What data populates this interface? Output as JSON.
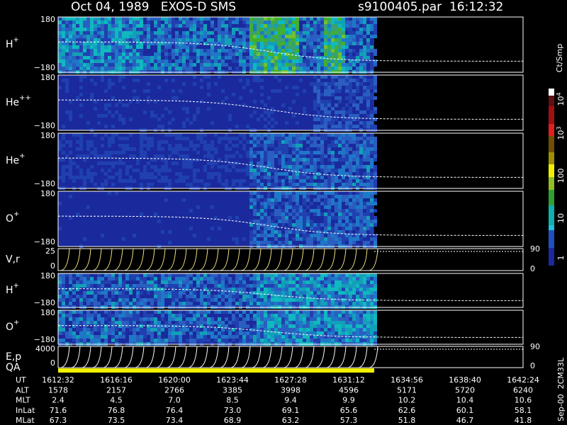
{
  "header": {
    "title": "Oct 04, 1989   EXOS-D SMS",
    "file": "s9100405.par  16:12:32"
  },
  "panels": [
    {
      "label": "H",
      "sup": "+",
      "top": "180",
      "bottom": "−180"
    },
    {
      "label": "He",
      "sup": "++",
      "top": "180",
      "bottom": "−180"
    },
    {
      "label": "He",
      "sup": "+",
      "top": "180",
      "bottom": "−180"
    },
    {
      "label": "O",
      "sup": "+",
      "top": "180",
      "bottom": "−180"
    },
    {
      "label": "V,r",
      "top": "25",
      "bottom": "0",
      "right_top": "90",
      "right_bottom": "0"
    },
    {
      "label": "H",
      "sup": "+",
      "top": "180",
      "bottom": "−180"
    },
    {
      "label": "O",
      "sup": "+",
      "top": "180",
      "bottom": "−180"
    },
    {
      "label": "E,p",
      "top": "4000",
      "bottom": "0",
      "right_top": "90",
      "right_bottom": "0"
    }
  ],
  "qa_label": "QA",
  "colorbar": {
    "title": "Ct/Smp",
    "ticks": [
      {
        "base": "10",
        "sup": "4"
      },
      {
        "base": "10",
        "sup": "3"
      },
      {
        "base": "100"
      },
      {
        "base": "10"
      },
      {
        "base": "1"
      }
    ]
  },
  "side_note": "Sep-00  2CM33L",
  "table": {
    "rows": [
      {
        "label": "UT",
        "values": [
          "1612:32",
          "1616:16",
          "1620:00",
          "1623:44",
          "1627:28",
          "1631:12",
          "1634:56",
          "1638:40",
          "1642:24"
        ]
      },
      {
        "label": "ALT",
        "values": [
          "1578",
          "2157",
          "2766",
          "3385",
          "3998",
          "4596",
          "5171",
          "5720",
          "6240"
        ]
      },
      {
        "label": "MLT",
        "values": [
          "2.4",
          "4.5",
          "7.0",
          "8.5",
          "9.4",
          "9.9",
          "10.2",
          "10.4",
          "10.6"
        ]
      },
      {
        "label": "InLat",
        "values": [
          "71.6",
          "76.8",
          "76.4",
          "73.0",
          "69.1",
          "65.6",
          "62.6",
          "60.1",
          "58.1"
        ]
      },
      {
        "label": "MLat",
        "values": [
          "67.3",
          "73.5",
          "73.4",
          "68.9",
          "63.2",
          "57.3",
          "51.8",
          "46.7",
          "41.8"
        ]
      }
    ]
  }
}
